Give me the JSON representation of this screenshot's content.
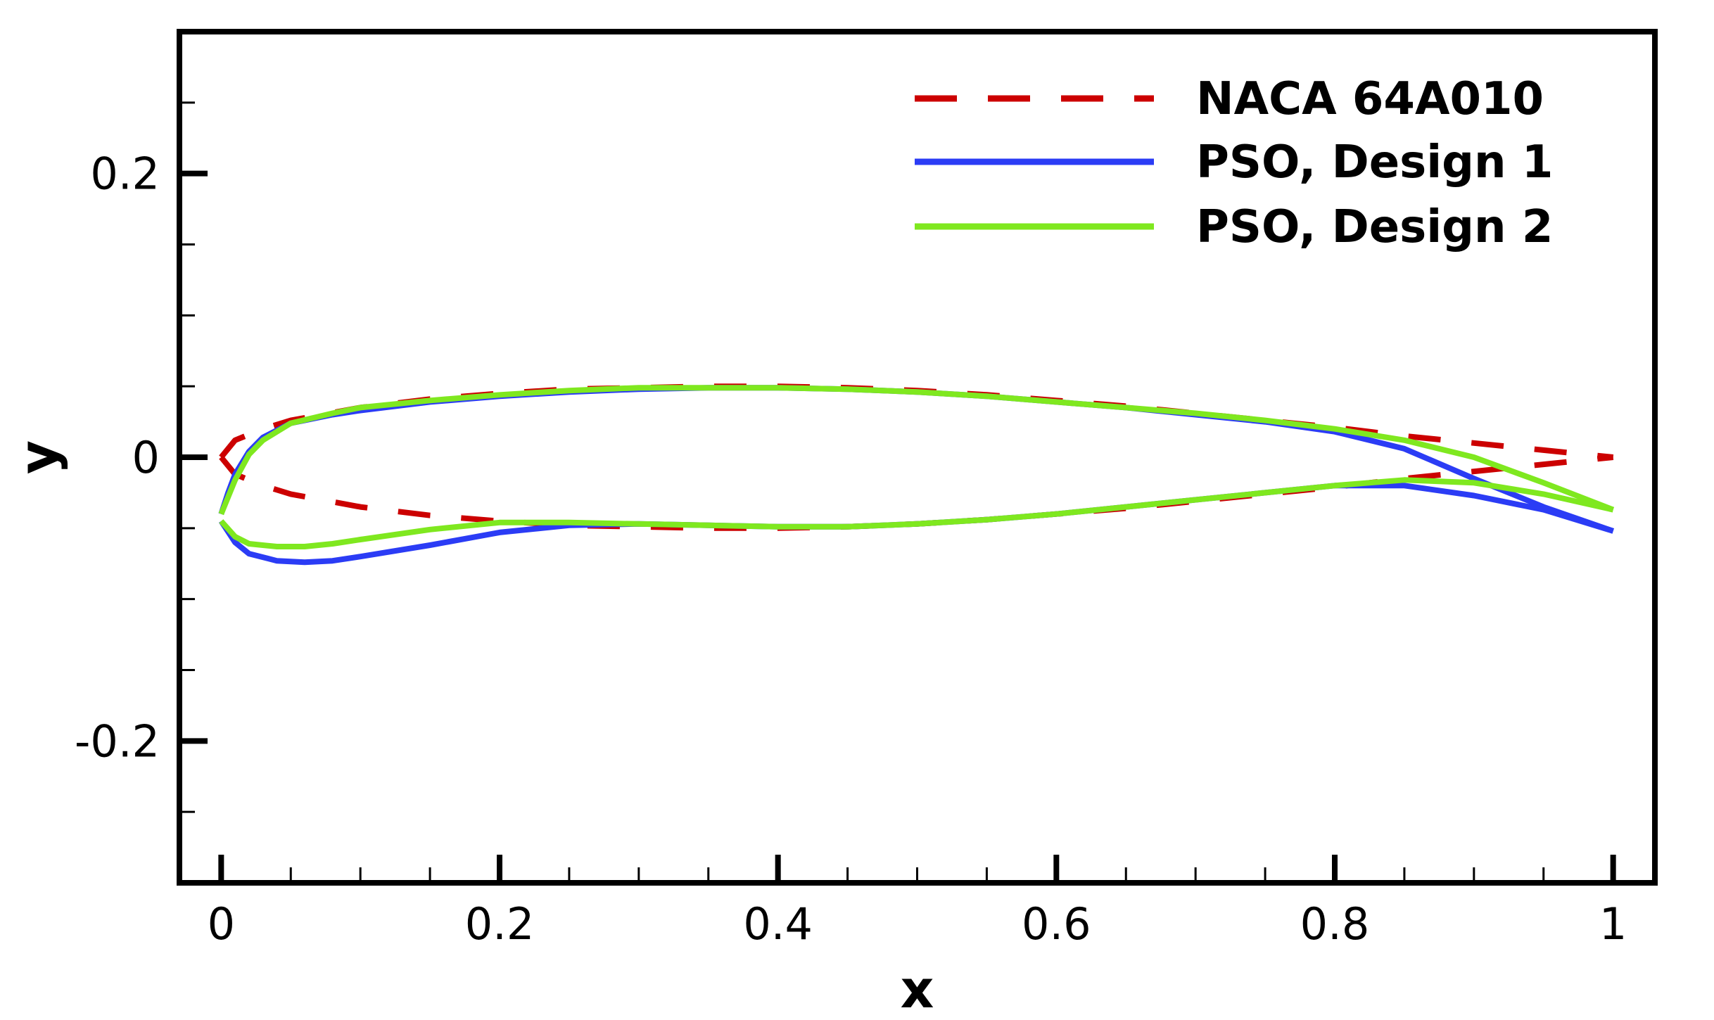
{
  "chart_data": {
    "type": "line",
    "title": "",
    "xlabel": "x",
    "ylabel": "y",
    "xlim": [
      -0.03,
      1.03
    ],
    "ylim": [
      -0.3,
      0.3
    ],
    "x_ticks_major": [
      0,
      0.2,
      0.4,
      0.6,
      0.8,
      1
    ],
    "x_tick_labels": [
      "0",
      "0.2",
      "0.4",
      "0.6",
      "0.8",
      "1"
    ],
    "x_ticks_minor_step": 0.05,
    "y_ticks_major": [
      -0.2,
      0,
      0.2
    ],
    "y_tick_labels": [
      "-0.2",
      "0",
      "0.2"
    ],
    "y_ticks_minor_step": 0.05,
    "grid": false,
    "legend_position": "top-right",
    "series": [
      {
        "name": "NACA 64A010",
        "color": "#cc0000",
        "dash": "dashed",
        "upper": {
          "x": [
            0,
            0.01,
            0.03,
            0.05,
            0.1,
            0.15,
            0.2,
            0.25,
            0.3,
            0.35,
            0.4,
            0.45,
            0.5,
            0.55,
            0.6,
            0.65,
            0.7,
            0.75,
            0.8,
            0.85,
            0.9,
            0.95,
            1.0
          ],
          "y": [
            0,
            0.012,
            0.02,
            0.026,
            0.035,
            0.041,
            0.045,
            0.048,
            0.049,
            0.05,
            0.05,
            0.049,
            0.047,
            0.044,
            0.04,
            0.036,
            0.031,
            0.026,
            0.021,
            0.015,
            0.01,
            0.005,
            0
          ]
        },
        "lower": {
          "x": [
            0,
            0.01,
            0.03,
            0.05,
            0.1,
            0.15,
            0.2,
            0.25,
            0.3,
            0.35,
            0.4,
            0.45,
            0.5,
            0.55,
            0.6,
            0.65,
            0.7,
            0.75,
            0.8,
            0.85,
            0.9,
            0.95,
            1.0
          ],
          "y": [
            0,
            -0.012,
            -0.02,
            -0.026,
            -0.035,
            -0.041,
            -0.045,
            -0.048,
            -0.049,
            -0.05,
            -0.05,
            -0.049,
            -0.047,
            -0.044,
            -0.04,
            -0.036,
            -0.031,
            -0.026,
            -0.021,
            -0.015,
            -0.01,
            -0.005,
            0
          ]
        }
      },
      {
        "name": "PSO, Design 1",
        "color": "#2b3cf5",
        "dash": "solid",
        "upper": {
          "x": [
            0,
            0.005,
            0.01,
            0.02,
            0.03,
            0.05,
            0.08,
            0.1,
            0.15,
            0.2,
            0.25,
            0.3,
            0.35,
            0.4,
            0.45,
            0.5,
            0.55,
            0.6,
            0.65,
            0.7,
            0.75,
            0.8,
            0.85,
            0.9,
            0.95,
            1.0
          ],
          "y": [
            -0.04,
            -0.025,
            -0.012,
            0.004,
            0.014,
            0.024,
            0.03,
            0.033,
            0.039,
            0.043,
            0.046,
            0.048,
            0.049,
            0.049,
            0.048,
            0.046,
            0.043,
            0.039,
            0.035,
            0.03,
            0.025,
            0.018,
            0.006,
            -0.015,
            -0.035,
            -0.052
          ]
        },
        "lower": {
          "x": [
            0,
            0.01,
            0.02,
            0.04,
            0.06,
            0.08,
            0.1,
            0.15,
            0.2,
            0.25,
            0.3,
            0.35,
            0.4,
            0.45,
            0.5,
            0.55,
            0.6,
            0.65,
            0.7,
            0.75,
            0.8,
            0.85,
            0.9,
            0.95,
            1.0
          ],
          "y": [
            -0.045,
            -0.06,
            -0.068,
            -0.073,
            -0.074,
            -0.073,
            -0.07,
            -0.062,
            -0.053,
            -0.048,
            -0.047,
            -0.048,
            -0.049,
            -0.049,
            -0.047,
            -0.044,
            -0.04,
            -0.035,
            -0.03,
            -0.025,
            -0.02,
            -0.02,
            -0.027,
            -0.037,
            -0.052
          ]
        }
      },
      {
        "name": "PSO, Design 2",
        "color": "#7fe81f",
        "dash": "solid",
        "upper": {
          "x": [
            0,
            0.005,
            0.01,
            0.02,
            0.03,
            0.05,
            0.08,
            0.1,
            0.15,
            0.2,
            0.25,
            0.3,
            0.35,
            0.4,
            0.45,
            0.5,
            0.55,
            0.6,
            0.65,
            0.7,
            0.75,
            0.8,
            0.85,
            0.9,
            0.95,
            1.0
          ],
          "y": [
            -0.04,
            -0.028,
            -0.016,
            0.002,
            0.012,
            0.024,
            0.031,
            0.035,
            0.04,
            0.044,
            0.047,
            0.049,
            0.049,
            0.049,
            0.048,
            0.046,
            0.043,
            0.039,
            0.035,
            0.031,
            0.026,
            0.02,
            0.012,
            0.0,
            -0.018,
            -0.037
          ]
        },
        "lower": {
          "x": [
            0,
            0.01,
            0.02,
            0.04,
            0.06,
            0.08,
            0.1,
            0.15,
            0.2,
            0.25,
            0.3,
            0.35,
            0.4,
            0.45,
            0.5,
            0.55,
            0.6,
            0.65,
            0.7,
            0.75,
            0.8,
            0.85,
            0.9,
            0.95,
            1.0
          ],
          "y": [
            -0.045,
            -0.056,
            -0.061,
            -0.063,
            -0.063,
            -0.061,
            -0.058,
            -0.051,
            -0.046,
            -0.046,
            -0.047,
            -0.048,
            -0.049,
            -0.049,
            -0.047,
            -0.044,
            -0.04,
            -0.035,
            -0.03,
            -0.025,
            -0.02,
            -0.016,
            -0.018,
            -0.026,
            -0.037
          ]
        }
      }
    ]
  }
}
